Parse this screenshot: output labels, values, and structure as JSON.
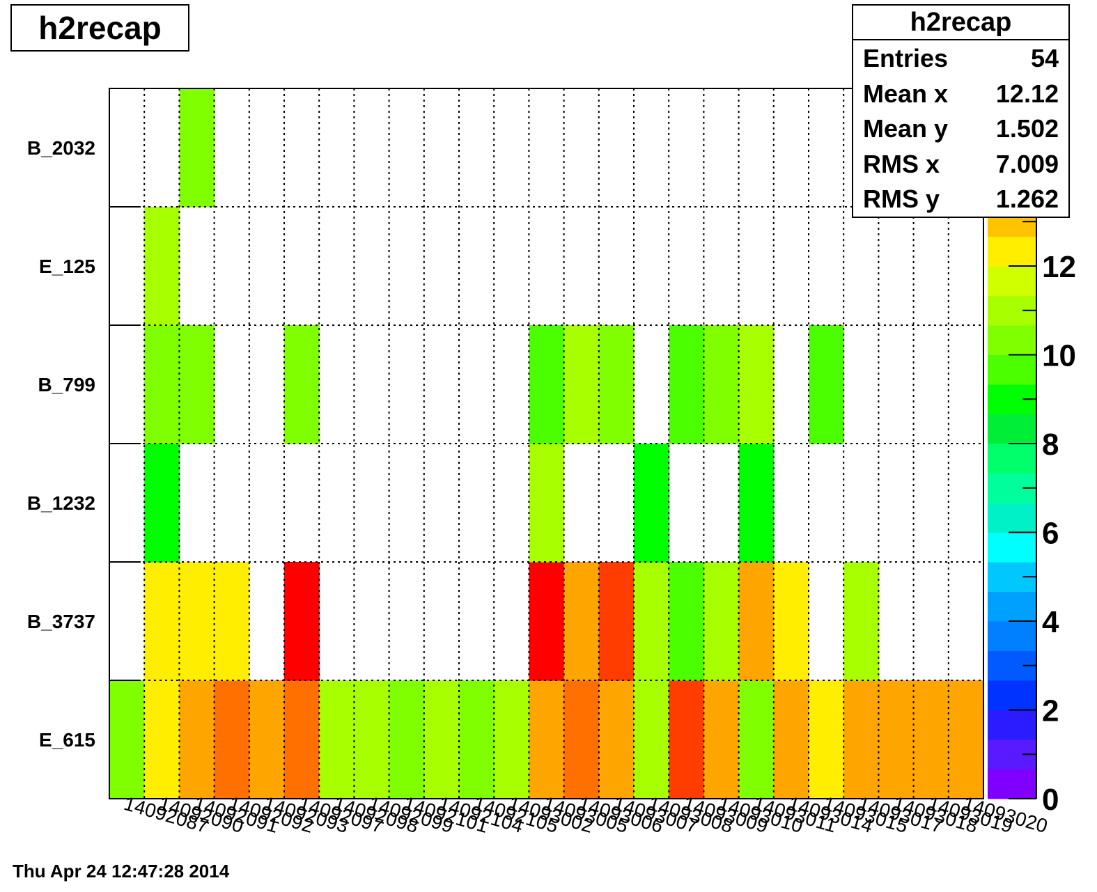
{
  "chart_data": {
    "type": "heatmap",
    "title": "h2recap",
    "x_labels": [
      "14092087",
      "14092090",
      "14092091",
      "14092092",
      "14092093",
      "14092097",
      "14092098",
      "14092099",
      "14092101",
      "14092104",
      "14092105",
      "14093002",
      "14093005",
      "14093006",
      "14093007",
      "14093008",
      "14093009",
      "14093010",
      "14093011",
      "14093014",
      "14093015",
      "14093017",
      "14093018",
      "14093019",
      "14093020"
    ],
    "y_labels": [
      "E_615",
      "B_3737",
      "B_1232",
      "B_799",
      "E_125",
      "B_2032"
    ],
    "grid": true,
    "z_range": [
      0,
      16
    ],
    "z_ticks": [
      "0",
      "2",
      "4",
      "6",
      "8",
      "10",
      "12"
    ],
    "palette": [
      "#7f00ff",
      "#5a1aff",
      "#2b1bff",
      "#0033ff",
      "#005aff",
      "#0080ff",
      "#00a0ff",
      "#00c8ff",
      "#00ffff",
      "#00f0c8",
      "#00ff9c",
      "#00ff6a",
      "#00ee38",
      "#00ff00",
      "#4cff00",
      "#7fff00",
      "#a8ff00",
      "#d0ff00",
      "#ffee00",
      "#ffc300",
      "#ffa500",
      "#ff7000",
      "#ff3d00",
      "#ff0000"
    ],
    "values": [
      [
        10.3,
        12.6,
        13.6,
        14.2,
        13.6,
        14.2,
        11.0,
        11.0,
        10.5,
        11.0,
        10.3,
        11.0,
        13.6,
        14.2,
        13.6,
        11.0,
        15.0,
        13.6,
        10.3,
        13.6,
        12.6,
        13.6,
        13.6,
        13.6,
        13.6
      ],
      [
        null,
        12.6,
        12.6,
        12.6,
        null,
        16.0,
        null,
        null,
        null,
        null,
        null,
        null,
        16.0,
        13.6,
        15.0,
        11.0,
        9.5,
        11.0,
        13.6,
        12.6,
        null,
        11.0,
        null,
        null,
        null
      ],
      [
        null,
        9.0,
        null,
        null,
        null,
        null,
        null,
        null,
        null,
        null,
        null,
        null,
        11.0,
        null,
        null,
        9.0,
        null,
        null,
        9.0,
        null,
        null,
        null,
        null,
        null,
        null
      ],
      [
        null,
        10.3,
        10.3,
        null,
        null,
        10.3,
        null,
        null,
        null,
        null,
        null,
        null,
        9.5,
        11.0,
        10.3,
        null,
        9.5,
        10.3,
        11.0,
        null,
        9.5,
        null,
        null,
        null,
        null
      ],
      [
        null,
        11.0,
        null,
        null,
        null,
        null,
        null,
        null,
        null,
        null,
        null,
        null,
        null,
        null,
        null,
        null,
        null,
        null,
        null,
        null,
        null,
        null,
        null,
        null,
        null
      ],
      [
        null,
        null,
        10.3,
        null,
        null,
        null,
        null,
        null,
        null,
        null,
        null,
        null,
        null,
        null,
        null,
        null,
        null,
        null,
        null,
        null,
        null,
        null,
        null,
        null,
        null
      ]
    ]
  },
  "stats": {
    "title": "h2recap",
    "rows": [
      {
        "label": "Entries",
        "value": "54"
      },
      {
        "label": "Mean x",
        "value": "12.12"
      },
      {
        "label": "Mean y",
        "value": "1.502"
      },
      {
        "label": "RMS x",
        "value": "7.009"
      },
      {
        "label": "RMS y",
        "value": "1.262"
      }
    ]
  },
  "timestamp": "Thu Apr 24 12:47:28 2014"
}
